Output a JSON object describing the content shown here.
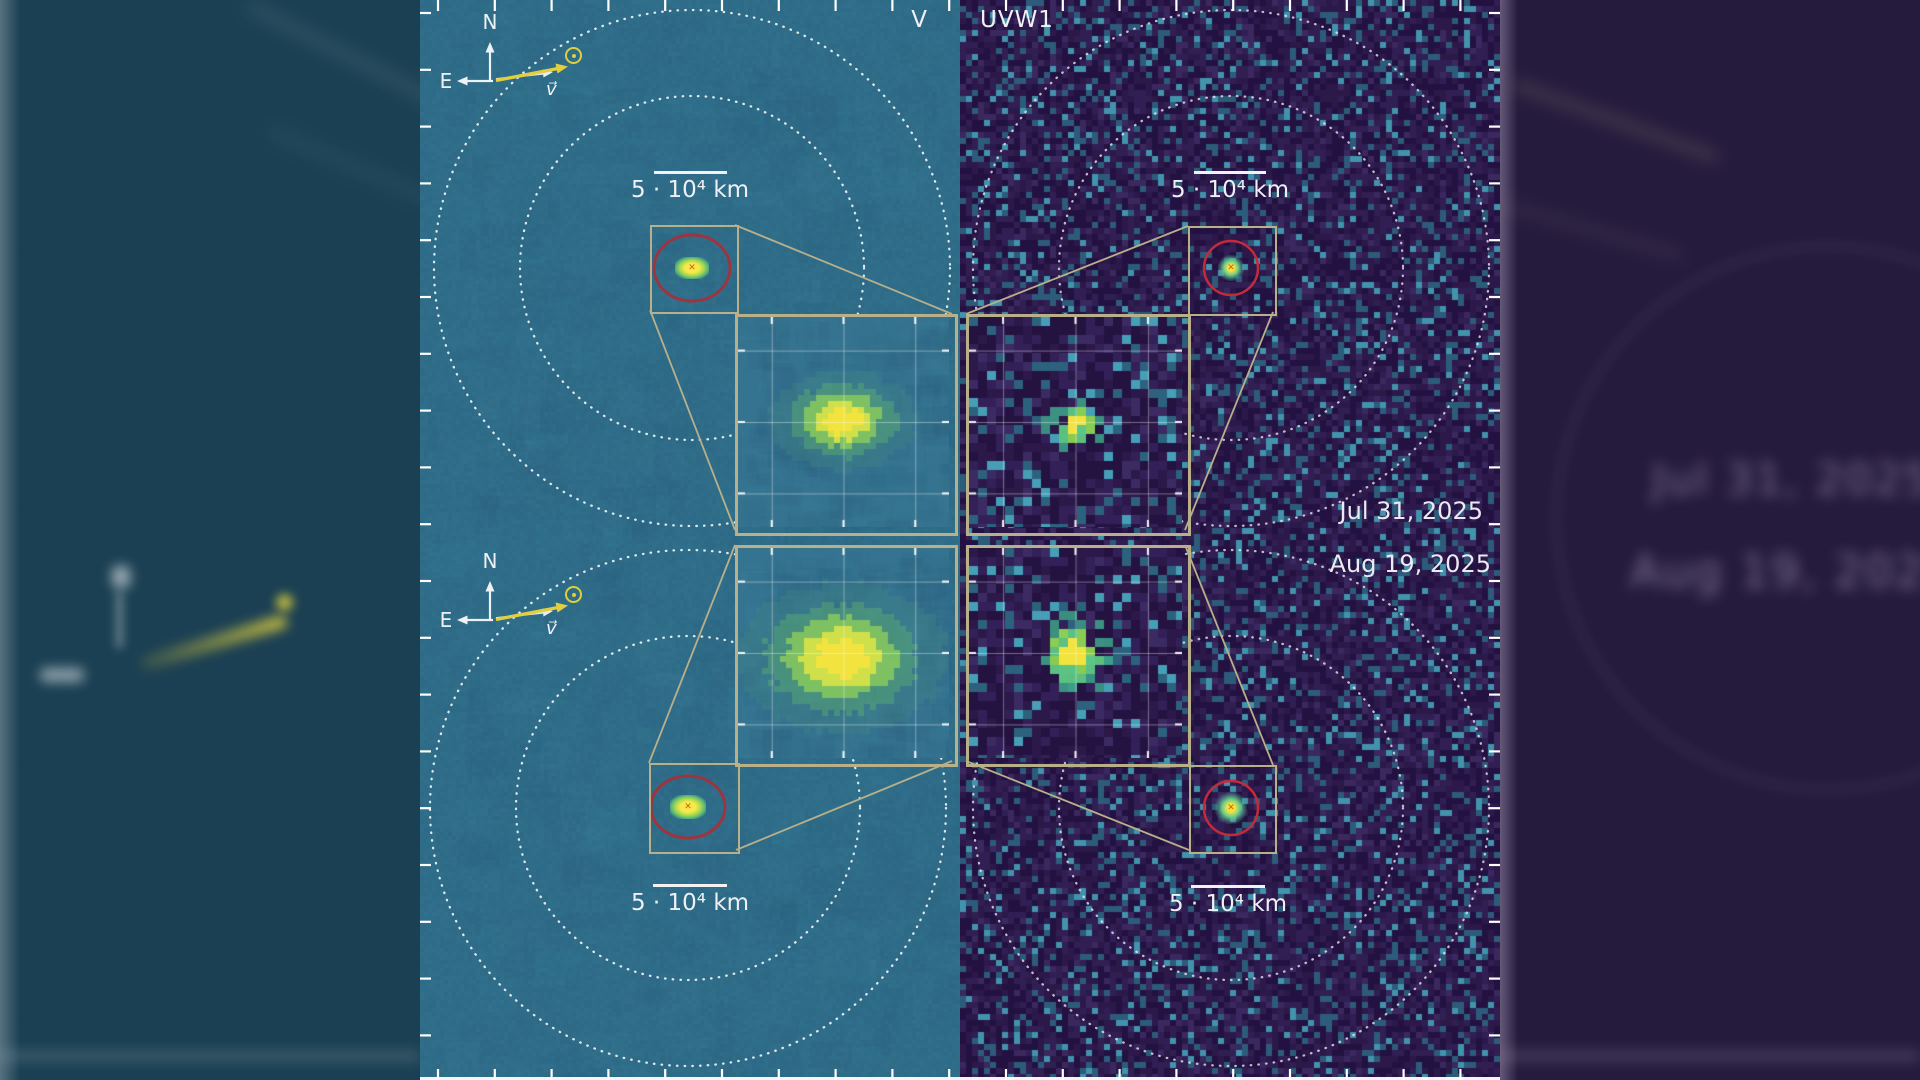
{
  "figure_type": "comet-observation-figure",
  "panels": {
    "left": {
      "filter_label": "V"
    },
    "right": {
      "filter_label": "UVW1"
    }
  },
  "rows": [
    {
      "date": "Jul 31, 2025"
    },
    {
      "date": "Aug 19, 2025"
    }
  ],
  "scale_bars": {
    "label": "5 · 10⁴ km"
  },
  "compass": {
    "north": "N",
    "east": "E",
    "velocity": "v⃗"
  },
  "markers": {
    "x_glyph": "✕"
  },
  "icons": {
    "sun_direction": "sun-direction-icon",
    "comet_center": "x-marker-icon"
  },
  "colors": {
    "v_background": "#2f6d89",
    "v_inset_background": "#357490",
    "uvw1_background": "#2c194a",
    "inset_border": "#b9b08a",
    "aperture_red_v": "#9e3440",
    "aperture_red_uvw1": "#c42b3a",
    "comet_core_yellow": "#f2e33f",
    "comet_coma_green": "#6cc06a",
    "arrow_yellow": "#e3cf3e",
    "tick_white": "#ffffff",
    "blur_left_bg": "#1b4053",
    "blur_right_bg": "#251b3d"
  }
}
